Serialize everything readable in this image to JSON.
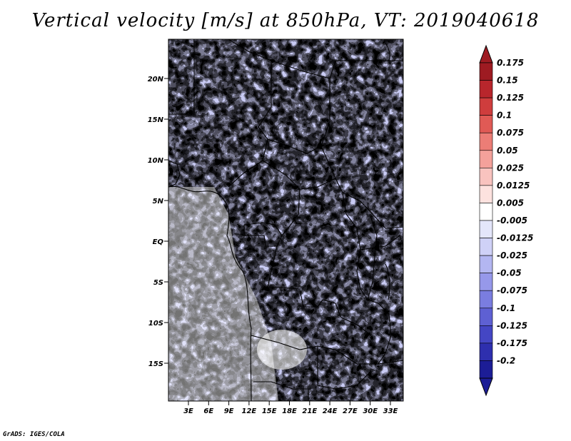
{
  "title": "Vertical velocity [m/s] at 850hPa, VT: 2019040618",
  "credit": "GrADS: IGES/COLA",
  "map": {
    "lat_labels": [
      "20N",
      "15N",
      "10N",
      "5N",
      "EQ",
      "5S",
      "10S",
      "15S"
    ],
    "lon_labels": [
      "3E",
      "6E",
      "9E",
      "12E",
      "15E",
      "18E",
      "21E",
      "24E",
      "27E",
      "30E",
      "33E"
    ]
  },
  "colorbar": {
    "labels": [
      "0.175",
      "0.15",
      "0.125",
      "0.1",
      "0.075",
      "0.05",
      "0.025",
      "0.0125",
      "0.005",
      "-0.005",
      "-0.0125",
      "-0.025",
      "-0.05",
      "-0.075",
      "-0.1",
      "-0.125",
      "-0.175",
      "-0.2"
    ],
    "colors": [
      "#9e1b22",
      "#b8262c",
      "#cf3d3d",
      "#e05a55",
      "#ec7d76",
      "#f4a19b",
      "#f9c3bf",
      "#fde2df",
      "#ffffff",
      "#e4e6fb",
      "#cfd1f7",
      "#b3b6f1",
      "#9698ea",
      "#7a7de0",
      "#5e60d3",
      "#4446c4",
      "#2e2fae",
      "#1c1d96"
    ],
    "top_cap": "#9e1b22",
    "bottom_cap": "#1c1d96"
  }
}
